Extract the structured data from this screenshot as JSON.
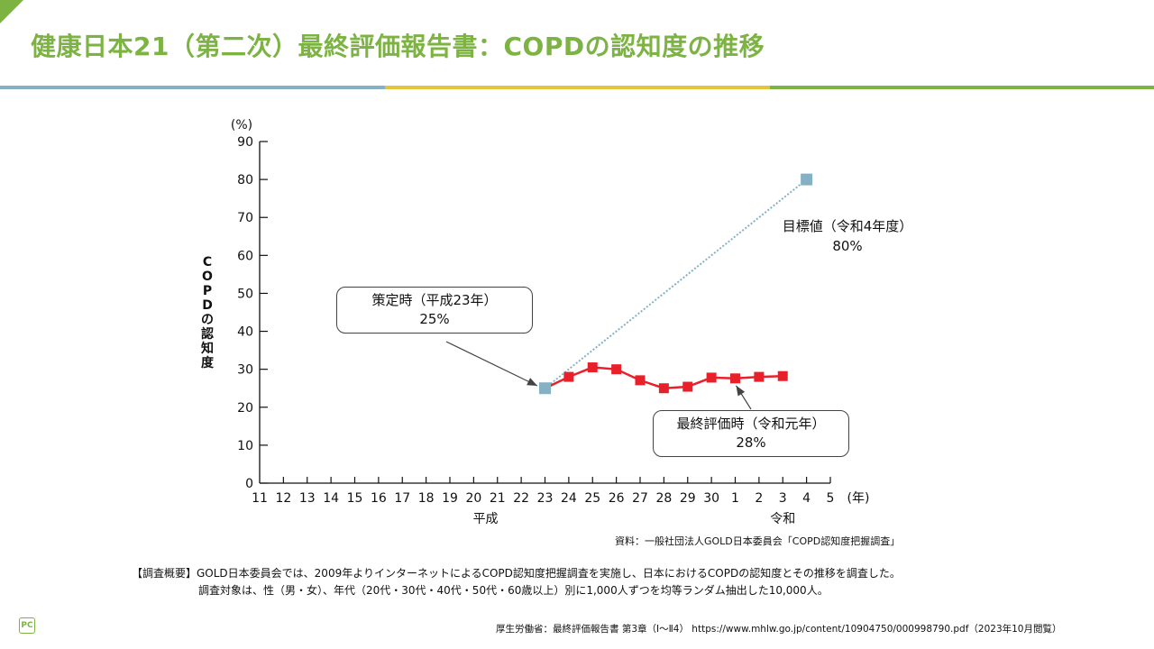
{
  "header": {
    "title": "健康日本21（第二次）最終評価報告書：COPDの認知度の推移",
    "accent_colors": [
      "#85b1c4",
      "#e3c53c",
      "#7cb342"
    ]
  },
  "chart_data": {
    "type": "line",
    "title": "",
    "ylabel": "COPDの認知度",
    "yunit": "(%)",
    "xunit": "(年)",
    "ylim": [
      0,
      90
    ],
    "yticks": [
      0,
      10,
      20,
      30,
      40,
      50,
      60,
      70,
      80,
      90
    ],
    "categories": [
      "11",
      "12",
      "13",
      "14",
      "15",
      "16",
      "17",
      "18",
      "19",
      "20",
      "21",
      "22",
      "23",
      "24",
      "25",
      "26",
      "27",
      "28",
      "29",
      "30",
      "1",
      "2",
      "3",
      "4",
      "5"
    ],
    "era_labels": [
      {
        "label": "平成",
        "at_category_index": 9.5
      },
      {
        "label": "令和",
        "at_category_index": 22
      }
    ],
    "grid": false,
    "series": [
      {
        "name": "認知度",
        "color": "#e8202a",
        "marker": "square",
        "categories": [
          "24",
          "25",
          "26",
          "27",
          "28",
          "29",
          "30",
          "1",
          "2",
          "3"
        ],
        "category_indices": [
          13,
          14,
          15,
          16,
          17,
          18,
          19,
          20,
          21,
          22
        ],
        "values": [
          28.0,
          30.5,
          30.0,
          27.1,
          25.0,
          25.4,
          27.8,
          27.6,
          28.0,
          28.2
        ]
      },
      {
        "name": "目標値ライン",
        "color": "#85b1c4",
        "style": "dotted",
        "marker": "square",
        "categories": [
          "23",
          "4"
        ],
        "category_indices": [
          12,
          23
        ],
        "values": [
          25,
          80
        ]
      }
    ],
    "annotations": [
      {
        "id": "baseline",
        "title": "策定時（平成23年）",
        "value": "25%",
        "boxed": true,
        "points_to": "23"
      },
      {
        "id": "target",
        "title": "目標値（令和4年度）",
        "value": "80%",
        "boxed": false,
        "points_to": "4"
      },
      {
        "id": "final",
        "title": "最終評価時（令和元年）",
        "value": "28%",
        "boxed": true,
        "points_to": "1"
      }
    ]
  },
  "source_note": "資料：一般社団法人GOLD日本委員会「COPD認知度把握調査」",
  "summary": {
    "line1": "【調査概要】GOLD日本委員会では、2009年よりインターネットによるCOPD認知度把握調査を実施し、日本におけるCOPDの認知度とその推移を調査した。",
    "line2": "調査対象は、性（男・女）、年代（20代・30代・40代・50代・60歳以上）別に1,000人ずつを均等ランダム抽出した10,000人。"
  },
  "reference": "厚生労働省：最終評価報告書 第3章（Ⅰ～Ⅱ4） https://www.mhlw.go.jp/content/10904750/000998790.pdf（2023年10月閲覧）",
  "logo_text": "PC"
}
